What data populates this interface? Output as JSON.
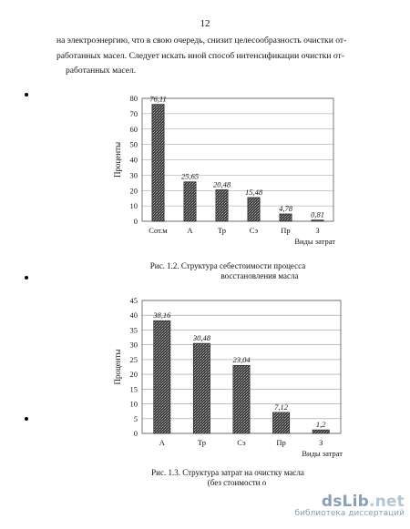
{
  "page": {
    "number": "12",
    "paragraph_lines": [
      "на электроэнергию, что в свою очередь, снизит целесообразность очистки от-",
      "работанных масел. Следует искать иной способ интенсификации очистки от-",
      "работанных масел."
    ]
  },
  "figures": [
    {
      "caption_lines": [
        "Рис. 1.2. Структура себестоимости процесса",
        "восстановления масла"
      ],
      "chart_data": {
        "type": "bar",
        "ylabel": "Проценты",
        "xlabel": "Виды затрат",
        "ylim": [
          0,
          80
        ],
        "yticks": [
          0,
          10,
          20,
          30,
          40,
          50,
          60,
          70,
          80
        ],
        "categories": [
          "Сот.м",
          "А",
          "Тр",
          "Сэ",
          "Пр",
          "З"
        ],
        "values": [
          76.11,
          25.65,
          20.48,
          15.48,
          4.78,
          0.81
        ],
        "data_labels": [
          "76,11",
          "25,65",
          "20,48",
          "15,48",
          "4,78",
          "0,81"
        ],
        "grid": true
      }
    },
    {
      "caption_lines": [
        "Рис. 1.3. Структура затрат на очистку масла",
        "(без стоимости о"
      ],
      "chart_data": {
        "type": "bar",
        "ylabel": "Проценты",
        "xlabel": "Виды затрат",
        "ylim": [
          0,
          45
        ],
        "yticks": [
          0,
          5,
          10,
          15,
          20,
          25,
          30,
          35,
          40,
          45
        ],
        "categories": [
          "А",
          "Тр",
          "Сэ",
          "Пр",
          "З"
        ],
        "values": [
          38.16,
          30.48,
          23.04,
          7.12,
          1.2
        ],
        "data_labels": [
          "38,16",
          "30,48",
          "23,04",
          "7,12",
          "1,2"
        ],
        "grid": true
      }
    }
  ],
  "watermark": {
    "logo_main": "dsLib",
    "logo_dot": ".net",
    "subtitle": "библиотека диссертаций"
  }
}
